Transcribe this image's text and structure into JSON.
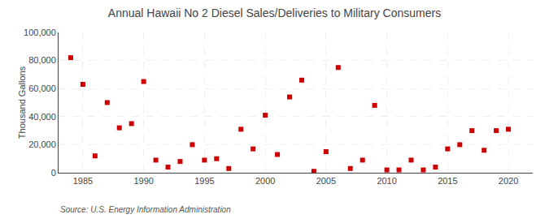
{
  "chart_data": {
    "type": "scatter",
    "title": "Annual Hawaii No 2 Diesel Sales/Deliveries to Military Consumers",
    "ylabel": "Thousand Gallons",
    "annotations": [
      "Source: U.S. Energy Information Administration"
    ],
    "x": [
      1984,
      1985,
      1986,
      1987,
      1988,
      1989,
      1990,
      1991,
      1992,
      1993,
      1994,
      1995,
      1996,
      1997,
      1998,
      1999,
      2000,
      2001,
      2002,
      2003,
      2004,
      2005,
      2006,
      2007,
      2008,
      2009,
      2010,
      2011,
      2012,
      2013,
      2014,
      2015,
      2016,
      2017,
      2018,
      2019,
      2020
    ],
    "values": [
      82000,
      63000,
      12000,
      50000,
      32000,
      35000,
      65000,
      9000,
      4000,
      8000,
      20000,
      9000,
      10000,
      3000,
      31000,
      17000,
      41000,
      13000,
      54000,
      66000,
      1000,
      15000,
      75000,
      3000,
      9000,
      48000,
      2000,
      2000,
      9000,
      2000,
      4000,
      17000,
      20000,
      30000,
      16000,
      30000,
      31000
    ],
    "xlim": [
      1983,
      2022
    ],
    "ylim": [
      0,
      100000
    ],
    "xticks": [
      1985,
      1990,
      1995,
      2000,
      2005,
      2010,
      2015,
      2020
    ],
    "yticks": [
      0,
      {
        "value": 20000,
        "label": "20,000"
      },
      {
        "value": 40000,
        "label": "40,000"
      },
      {
        "value": 60000,
        "label": "60,000"
      },
      {
        "value": 80000,
        "label": "80,000"
      },
      {
        "value": 100000,
        "label": "100,000"
      }
    ],
    "color": "#cc0000",
    "marker": "square",
    "grid": true
  }
}
